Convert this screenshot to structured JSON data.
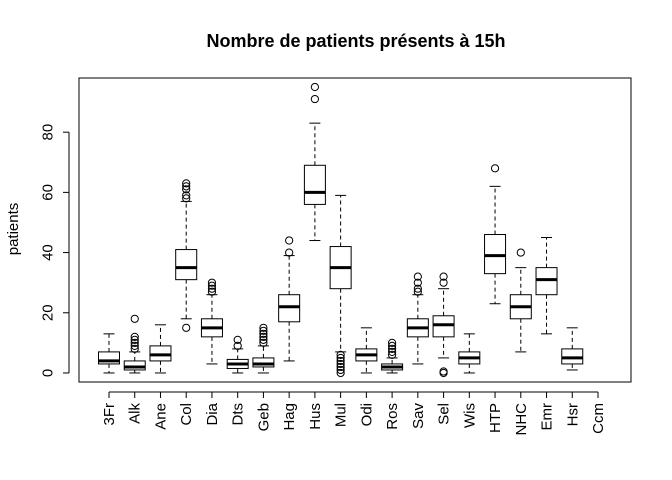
{
  "chart_data": {
    "type": "boxplot",
    "title": "Nombre de patients présents à 15h",
    "xlabel": "",
    "ylabel": "patients",
    "ylim": [
      -3,
      98
    ],
    "yticks": [
      0,
      20,
      40,
      60,
      80
    ],
    "categories": [
      "3Fr",
      "Alk",
      "Ane",
      "Col",
      "Dia",
      "Dts",
      "Geb",
      "Hag",
      "Hus",
      "Mul",
      "Odi",
      "Ros",
      "Sav",
      "Sel",
      "Wis",
      "HTP",
      "NHC",
      "Emr",
      "Hsr",
      "Ccm"
    ],
    "boxes": [
      {
        "min": 0,
        "q1": 3,
        "median": 4,
        "q3": 7,
        "max": 13,
        "outliers": []
      },
      {
        "min": 0,
        "q1": 1,
        "median": 2,
        "q3": 4,
        "max": 7,
        "outliers": [
          8,
          9,
          10,
          11,
          12,
          18
        ]
      },
      {
        "min": 0,
        "q1": 4,
        "median": 6,
        "q3": 9,
        "max": 16,
        "outliers": []
      },
      {
        "min": 18,
        "q1": 31,
        "median": 35,
        "q3": 41,
        "max": 57,
        "outliers": [
          15,
          58,
          59,
          61,
          62,
          63
        ]
      },
      {
        "min": 3,
        "q1": 12,
        "median": 15,
        "q3": 18,
        "max": 26,
        "outliers": [
          27,
          28,
          29,
          30
        ]
      },
      {
        "min": 0,
        "q1": 1.5,
        "median": 3,
        "q3": 4.5,
        "max": 8,
        "outliers": [
          9,
          11
        ]
      },
      {
        "min": 0,
        "q1": 2,
        "median": 3,
        "q3": 5,
        "max": 9,
        "outliers": [
          10,
          11,
          12,
          13,
          14,
          15
        ]
      },
      {
        "min": 4,
        "q1": 17,
        "median": 22,
        "q3": 26,
        "max": 39,
        "outliers": [
          40,
          44
        ]
      },
      {
        "min": 44,
        "q1": 56,
        "median": 60,
        "q3": 69,
        "max": 83,
        "outliers": [
          91,
          95
        ]
      },
      {
        "min": 7,
        "q1": 28,
        "median": 35,
        "q3": 42,
        "max": 59,
        "outliers": [
          0,
          1,
          2,
          3,
          4,
          5,
          6
        ]
      },
      {
        "min": 0,
        "q1": 4,
        "median": 6,
        "q3": 8,
        "max": 15,
        "outliers": []
      },
      {
        "min": 0,
        "q1": 1,
        "median": 2,
        "q3": 3,
        "max": 5,
        "outliers": [
          6,
          7,
          8,
          9,
          10
        ]
      },
      {
        "min": 3,
        "q1": 12,
        "median": 15,
        "q3": 18,
        "max": 26,
        "outliers": [
          27,
          28,
          30,
          32
        ]
      },
      {
        "min": 5,
        "q1": 12,
        "median": 16,
        "q3": 19,
        "max": 28,
        "outliers": [
          0,
          0.5,
          30,
          32
        ]
      },
      {
        "min": 0,
        "q1": 3,
        "median": 5,
        "q3": 7,
        "max": 13,
        "outliers": []
      },
      {
        "min": 23,
        "q1": 33,
        "median": 39,
        "q3": 46,
        "max": 62,
        "outliers": [
          68
        ]
      },
      {
        "min": 7,
        "q1": 18,
        "median": 22,
        "q3": 26,
        "max": 35,
        "outliers": [
          40
        ]
      },
      {
        "min": 13,
        "q1": 26,
        "median": 31,
        "q3": 35,
        "max": 45,
        "outliers": []
      },
      {
        "min": 1,
        "q1": 3,
        "median": 5,
        "q3": 8,
        "max": 15,
        "outliers": []
      },
      null
    ]
  }
}
